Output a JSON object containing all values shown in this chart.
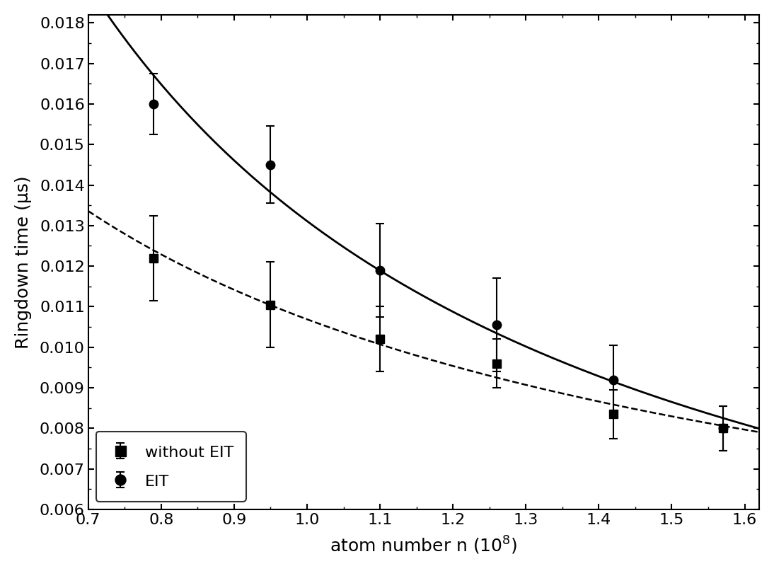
{
  "without_eit_x": [
    0.79,
    0.95,
    1.1,
    1.26,
    1.42,
    1.57
  ],
  "without_eit_y": [
    0.0122,
    0.01105,
    0.0102,
    0.0096,
    0.00835,
    0.008
  ],
  "without_eit_yerr": [
    0.00105,
    0.00105,
    0.0008,
    0.0006,
    0.0006,
    0.00055
  ],
  "eit_x": [
    0.79,
    0.95,
    1.1,
    1.26,
    1.42,
    1.57
  ],
  "eit_y": [
    0.016,
    0.0145,
    0.0119,
    0.01055,
    0.0092,
    0.008
  ],
  "eit_yerr": [
    0.00075,
    0.00095,
    0.00115,
    0.00115,
    0.00085,
    0.00055
  ],
  "xlabel": "atom number n (10$^{8}$)",
  "ylabel": "Ringdown time (μs)",
  "xlim": [
    0.7,
    1.62
  ],
  "ylim": [
    0.006,
    0.0182
  ],
  "xticks": [
    0.7,
    0.8,
    0.9,
    1.0,
    1.1,
    1.2,
    1.3,
    1.4,
    1.5,
    1.6
  ],
  "yticks": [
    0.006,
    0.007,
    0.008,
    0.009,
    0.01,
    0.011,
    0.012,
    0.013,
    0.014,
    0.015,
    0.016,
    0.017,
    0.018
  ],
  "legend_labels": [
    "without EIT",
    "EIT"
  ],
  "marker_color": "black",
  "line_color": "black",
  "background_color": "#ffffff"
}
